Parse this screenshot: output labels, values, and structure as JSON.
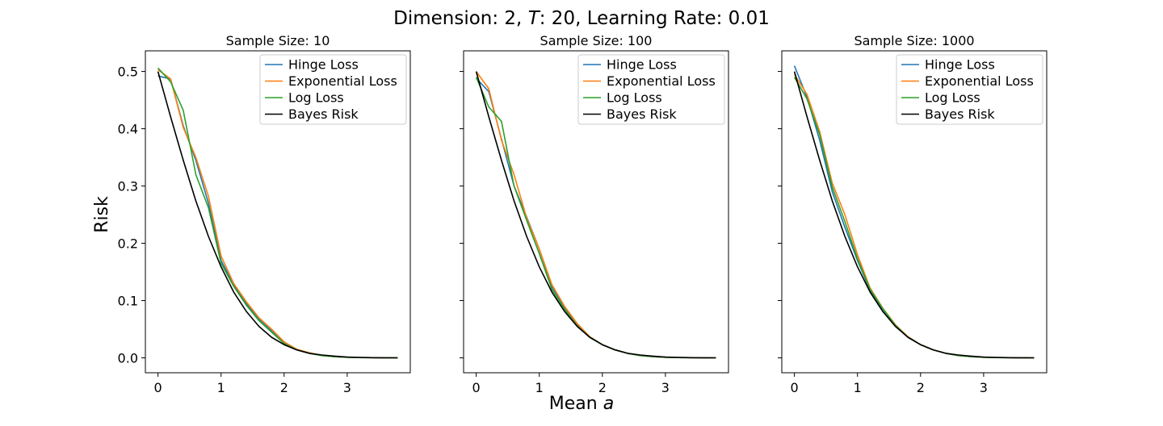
{
  "figure": {
    "title_prefix": "Dimension: 2, ",
    "title_T": "T",
    "title_suffix": ": 20, Learning Rate: 0.01",
    "ylabel": "Risk",
    "xlabel_prefix": "Mean ",
    "xlabel_var": "a"
  },
  "colors": {
    "hinge": "#1f77b4",
    "exponential": "#ff7f0e",
    "log": "#2ca02c",
    "bayes": "#000000"
  },
  "chart_data": [
    {
      "type": "line",
      "title": "Sample Size: 10",
      "xlabel": "",
      "ylabel": "Risk",
      "xlim": [
        -0.2,
        4.0
      ],
      "ylim": [
        -0.026,
        0.536
      ],
      "xticks": [
        "0",
        "1",
        "2",
        "3"
      ],
      "yticks": [
        "0.0",
        "0.1",
        "0.2",
        "0.3",
        "0.4",
        "0.5"
      ],
      "legend_position": "top-right",
      "x": [
        0,
        0.2,
        0.4,
        0.6,
        0.8,
        1.0,
        1.2,
        1.4,
        1.6,
        1.8,
        2.0,
        2.2,
        2.4,
        2.6,
        2.8,
        3.0,
        3.2,
        3.4,
        3.6,
        3.8
      ],
      "series": [
        {
          "name": "Hinge Loss",
          "color_key": "hinge",
          "values": [
            0.492,
            0.487,
            0.405,
            0.345,
            0.27,
            0.17,
            0.128,
            0.095,
            0.068,
            0.048,
            0.027,
            0.014,
            0.008,
            0.004,
            0.002,
            0.001,
            0.0005,
            0.0003,
            0.0001,
            0.0
          ]
        },
        {
          "name": "Exponential Loss",
          "color_key": "exponential",
          "values": [
            0.503,
            0.487,
            0.402,
            0.35,
            0.282,
            0.178,
            0.13,
            0.098,
            0.07,
            0.05,
            0.028,
            0.015,
            0.009,
            0.004,
            0.002,
            0.001,
            0.0005,
            0.0003,
            0.0001,
            0.0
          ]
        },
        {
          "name": "Log Loss",
          "color_key": "log",
          "values": [
            0.506,
            0.482,
            0.432,
            0.32,
            0.262,
            0.165,
            0.125,
            0.092,
            0.065,
            0.045,
            0.025,
            0.014,
            0.008,
            0.004,
            0.002,
            0.001,
            0.0005,
            0.0003,
            0.0001,
            0.0
          ]
        },
        {
          "name": "Bayes Risk",
          "color_key": "bayes",
          "values": [
            0.5,
            0.421,
            0.345,
            0.274,
            0.212,
            0.159,
            0.115,
            0.081,
            0.055,
            0.036,
            0.023,
            0.014,
            0.008,
            0.005,
            0.003,
            0.0013,
            0.0007,
            0.0003,
            0.0002,
            0.0001
          ]
        }
      ]
    },
    {
      "type": "line",
      "title": "Sample Size: 100",
      "xlabel": "Mean a",
      "ylabel": "",
      "xlim": [
        -0.2,
        4.0
      ],
      "ylim": [
        -0.026,
        0.536
      ],
      "xticks": [
        "0",
        "1",
        "2",
        "3"
      ],
      "yticks": [
        "0.0",
        "0.1",
        "0.2",
        "0.3",
        "0.4",
        "0.5"
      ],
      "legend_position": "top-right",
      "x": [
        0,
        0.2,
        0.4,
        0.6,
        0.8,
        1.0,
        1.2,
        1.4,
        1.6,
        1.8,
        2.0,
        2.2,
        2.4,
        2.6,
        2.8,
        3.0,
        3.2,
        3.4,
        3.6,
        3.8
      ],
      "series": [
        {
          "name": "Hinge Loss",
          "color_key": "hinge",
          "values": [
            0.488,
            0.465,
            0.382,
            0.3,
            0.246,
            0.19,
            0.125,
            0.088,
            0.058,
            0.036,
            0.023,
            0.014,
            0.008,
            0.004,
            0.002,
            0.001,
            0.0005,
            0.0003,
            0.0001,
            0.0
          ]
        },
        {
          "name": "Exponential Loss",
          "color_key": "exponential",
          "values": [
            0.5,
            0.47,
            0.38,
            0.32,
            0.244,
            0.19,
            0.128,
            0.09,
            0.06,
            0.037,
            0.023,
            0.014,
            0.008,
            0.004,
            0.002,
            0.001,
            0.0005,
            0.0003,
            0.0001,
            0.0
          ]
        },
        {
          "name": "Log Loss",
          "color_key": "log",
          "values": [
            0.49,
            0.438,
            0.413,
            0.3,
            0.24,
            0.182,
            0.12,
            0.085,
            0.056,
            0.036,
            0.023,
            0.014,
            0.008,
            0.004,
            0.002,
            0.001,
            0.0005,
            0.0003,
            0.0001,
            0.0
          ]
        },
        {
          "name": "Bayes Risk",
          "color_key": "bayes",
          "values": [
            0.5,
            0.421,
            0.345,
            0.274,
            0.212,
            0.159,
            0.115,
            0.081,
            0.055,
            0.036,
            0.023,
            0.014,
            0.008,
            0.005,
            0.003,
            0.0013,
            0.0007,
            0.0003,
            0.0002,
            0.0001
          ]
        }
      ]
    },
    {
      "type": "line",
      "title": "Sample Size: 1000",
      "xlabel": "",
      "ylabel": "",
      "xlim": [
        -0.2,
        4.0
      ],
      "ylim": [
        -0.026,
        0.536
      ],
      "xticks": [
        "0",
        "1",
        "2",
        "3"
      ],
      "yticks": [
        "0.0",
        "0.1",
        "0.2",
        "0.3",
        "0.4",
        "0.5"
      ],
      "legend_position": "top-right",
      "x": [
        0,
        0.2,
        0.4,
        0.6,
        0.8,
        1.0,
        1.2,
        1.4,
        1.6,
        1.8,
        2.0,
        2.2,
        2.4,
        2.6,
        2.8,
        3.0,
        3.2,
        3.4,
        3.6,
        3.8
      ],
      "series": [
        {
          "name": "Hinge Loss",
          "color_key": "hinge",
          "values": [
            0.51,
            0.455,
            0.38,
            0.29,
            0.228,
            0.17,
            0.118,
            0.085,
            0.057,
            0.036,
            0.023,
            0.014,
            0.008,
            0.004,
            0.002,
            0.001,
            0.0005,
            0.0003,
            0.0001,
            0.0
          ]
        },
        {
          "name": "Exponential Loss",
          "color_key": "exponential",
          "values": [
            0.495,
            0.46,
            0.395,
            0.305,
            0.25,
            0.18,
            0.122,
            0.087,
            0.058,
            0.037,
            0.023,
            0.014,
            0.008,
            0.004,
            0.002,
            0.001,
            0.0005,
            0.0003,
            0.0001,
            0.0
          ]
        },
        {
          "name": "Log Loss",
          "color_key": "log",
          "values": [
            0.49,
            0.452,
            0.39,
            0.298,
            0.238,
            0.173,
            0.12,
            0.086,
            0.057,
            0.036,
            0.023,
            0.014,
            0.008,
            0.004,
            0.002,
            0.001,
            0.0005,
            0.0003,
            0.0001,
            0.0
          ]
        },
        {
          "name": "Bayes Risk",
          "color_key": "bayes",
          "values": [
            0.5,
            0.421,
            0.345,
            0.274,
            0.212,
            0.159,
            0.115,
            0.081,
            0.055,
            0.036,
            0.023,
            0.014,
            0.008,
            0.005,
            0.003,
            0.0013,
            0.0007,
            0.0003,
            0.0002,
            0.0001
          ]
        }
      ]
    }
  ]
}
